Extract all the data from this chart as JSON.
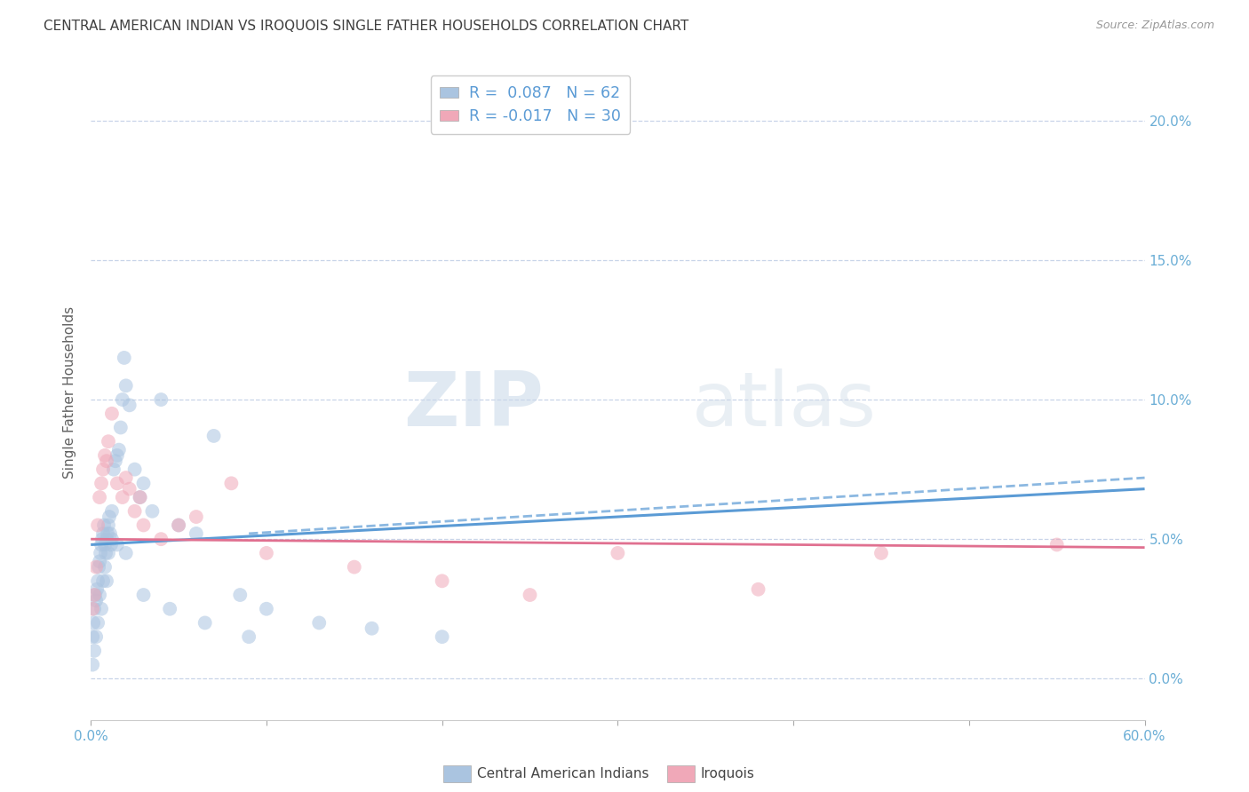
{
  "title": "CENTRAL AMERICAN INDIAN VS IROQUOIS SINGLE FATHER HOUSEHOLDS CORRELATION CHART",
  "source": "Source: ZipAtlas.com",
  "ylabel": "Single Father Households",
  "ytick_values": [
    0.0,
    5.0,
    10.0,
    15.0,
    20.0
  ],
  "xlim": [
    0.0,
    60.0
  ],
  "ylim": [
    -1.5,
    22.0
  ],
  "watermark_zip": "ZIP",
  "watermark_atlas": "atlas",
  "legend_label1": "R =  0.087   N = 62",
  "legend_label2": "R = -0.017   N = 30",
  "series1_color": "#aac4e0",
  "series2_color": "#f0a8b8",
  "trendline1_color": "#5b9bd5",
  "trendline2_color": "#e07090",
  "background_color": "#ffffff",
  "grid_color": "#c8d4e8",
  "title_color": "#404040",
  "tick_color": "#6baed6",
  "series1_x": [
    0.1,
    0.15,
    0.2,
    0.25,
    0.3,
    0.35,
    0.4,
    0.45,
    0.5,
    0.55,
    0.6,
    0.65,
    0.7,
    0.75,
    0.8,
    0.85,
    0.9,
    0.95,
    1.0,
    1.05,
    1.1,
    1.15,
    1.2,
    1.3,
    1.4,
    1.5,
    1.6,
    1.7,
    1.8,
    1.9,
    2.0,
    2.2,
    2.5,
    2.8,
    3.0,
    3.5,
    4.0,
    5.0,
    6.0,
    7.0,
    8.5,
    10.0,
    13.0,
    16.0,
    20.0,
    0.1,
    0.2,
    0.3,
    0.4,
    0.5,
    0.6,
    0.7,
    0.8,
    0.9,
    1.0,
    1.2,
    1.5,
    2.0,
    3.0,
    4.5,
    6.5,
    9.0
  ],
  "series1_y": [
    1.5,
    2.0,
    2.5,
    3.0,
    2.8,
    3.2,
    3.5,
    4.0,
    4.2,
    4.5,
    4.8,
    5.0,
    5.2,
    5.5,
    4.8,
    4.5,
    5.0,
    5.2,
    5.5,
    5.8,
    5.2,
    4.8,
    6.0,
    7.5,
    7.8,
    8.0,
    8.2,
    9.0,
    10.0,
    11.5,
    10.5,
    9.8,
    7.5,
    6.5,
    7.0,
    6.0,
    10.0,
    5.5,
    5.2,
    8.7,
    3.0,
    2.5,
    2.0,
    1.8,
    1.5,
    0.5,
    1.0,
    1.5,
    2.0,
    3.0,
    2.5,
    3.5,
    4.0,
    3.5,
    4.5,
    5.0,
    4.8,
    4.5,
    3.0,
    2.5,
    2.0,
    1.5
  ],
  "series2_x": [
    0.1,
    0.2,
    0.3,
    0.4,
    0.5,
    0.6,
    0.7,
    0.8,
    0.9,
    1.0,
    1.2,
    1.5,
    1.8,
    2.0,
    2.2,
    2.5,
    2.8,
    3.0,
    4.0,
    5.0,
    6.0,
    8.0,
    10.0,
    15.0,
    20.0,
    25.0,
    30.0,
    38.0,
    45.0,
    55.0
  ],
  "series2_y": [
    2.5,
    3.0,
    4.0,
    5.5,
    6.5,
    7.0,
    7.5,
    8.0,
    7.8,
    8.5,
    9.5,
    7.0,
    6.5,
    7.2,
    6.8,
    6.0,
    6.5,
    5.5,
    5.0,
    5.5,
    5.8,
    7.0,
    4.5,
    4.0,
    3.5,
    3.0,
    4.5,
    3.2,
    4.5,
    4.8
  ],
  "marker_size": 130,
  "marker_alpha": 0.55,
  "trendline1_y_at_0": 4.8,
  "trendline1_y_at_60": 6.8,
  "trendline2_y_at_0": 5.0,
  "trendline2_y_at_60": 4.7,
  "trendline1_dash_y_at_10": 5.2,
  "trendline1_dash_y_at_60": 7.2
}
